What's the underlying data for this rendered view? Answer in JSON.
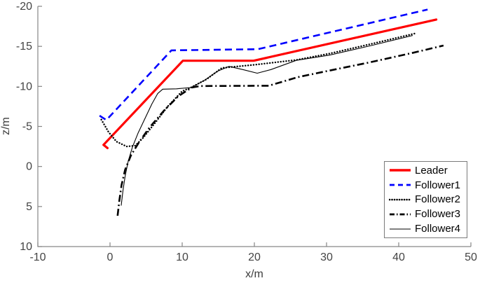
{
  "figure": {
    "background": "#ffffff",
    "axis_line_color": "#868686",
    "tick_label_color": "#444444"
  },
  "chart_data": {
    "type": "line",
    "title": "",
    "xlabel": "x/m",
    "ylabel": "z/m",
    "xlim": [
      -10,
      50
    ],
    "ylim": [
      -20,
      10
    ],
    "y_axis_reversed": true,
    "grid": false,
    "x_ticks": [
      -10,
      0,
      10,
      20,
      30,
      40,
      50
    ],
    "y_ticks": [
      -20,
      -15,
      -10,
      -5,
      0,
      5,
      10
    ],
    "legend_position": "bottom-right",
    "series": [
      {
        "name": "Leader",
        "color": "#ff0000",
        "style": "solid",
        "points": [
          [
            -0.35,
            -2.3
          ],
          [
            -0.9,
            -2.7
          ],
          [
            10.1,
            -13.2
          ],
          [
            19.9,
            -13.2
          ],
          [
            45.2,
            -18.35
          ]
        ]
      },
      {
        "name": "Follower1",
        "color": "#0000ff",
        "style": "dashed",
        "points": [
          [
            -1.45,
            -6.35
          ],
          [
            -0.5,
            -5.8
          ],
          [
            8.5,
            -14.5
          ],
          [
            20.5,
            -14.65
          ],
          [
            44,
            -19.6
          ]
        ]
      },
      {
        "name": "Follower2",
        "color": "#000000",
        "style": "dotted",
        "points": [
          [
            -1.2,
            -5.85
          ],
          [
            -0.2,
            -4.3
          ],
          [
            0.9,
            -3.1
          ],
          [
            2.3,
            -2.5
          ],
          [
            3.5,
            -2.6
          ],
          [
            4.6,
            -3.6
          ],
          [
            6.2,
            -5.4
          ],
          [
            8,
            -7.5
          ],
          [
            10,
            -9.4
          ],
          [
            11.2,
            -9.85
          ],
          [
            13.4,
            -10.9
          ],
          [
            15.5,
            -12.3
          ],
          [
            20,
            -12.7
          ],
          [
            25.8,
            -13.3
          ],
          [
            30.4,
            -14.1
          ],
          [
            36.2,
            -15.3
          ],
          [
            42.2,
            -16.6
          ]
        ]
      },
      {
        "name": "Follower3",
        "color": "#000000",
        "style": "dashdot",
        "points": [
          [
            1.05,
            6.15
          ],
          [
            1.3,
            4.2
          ],
          [
            1.6,
            2.3
          ],
          [
            2.1,
            0.4
          ],
          [
            2.9,
            -1.4
          ],
          [
            4,
            -3
          ],
          [
            5.5,
            -4.9
          ],
          [
            7.5,
            -7
          ],
          [
            9.5,
            -8.8
          ],
          [
            11.3,
            -9.85
          ],
          [
            12.5,
            -10.05
          ],
          [
            22,
            -10.08
          ],
          [
            26,
            -11.15
          ],
          [
            30,
            -11.9
          ],
          [
            36,
            -13
          ],
          [
            42,
            -14.2
          ],
          [
            46.2,
            -15.1
          ]
        ]
      },
      {
        "name": "Follower4",
        "color": "#000000",
        "style": "thin",
        "points": [
          [
            1.55,
            4.85
          ],
          [
            1.8,
            3
          ],
          [
            2.1,
            1.2
          ],
          [
            2.5,
            -0.6
          ],
          [
            3.1,
            -2.4
          ],
          [
            3.9,
            -4.2
          ],
          [
            4.9,
            -6.1
          ],
          [
            5.8,
            -7.8
          ],
          [
            6.6,
            -9.1
          ],
          [
            7.3,
            -9.65
          ],
          [
            9.2,
            -9.7
          ],
          [
            11.2,
            -9.85
          ],
          [
            13,
            -10.7
          ],
          [
            14.9,
            -11.9
          ],
          [
            16.5,
            -12.5
          ],
          [
            18.4,
            -12.1
          ],
          [
            20.4,
            -11.65
          ],
          [
            22.3,
            -12.1
          ],
          [
            25.8,
            -13.25
          ],
          [
            30.4,
            -13.9
          ],
          [
            36.2,
            -15.1
          ],
          [
            41.9,
            -16.35
          ]
        ]
      }
    ]
  }
}
